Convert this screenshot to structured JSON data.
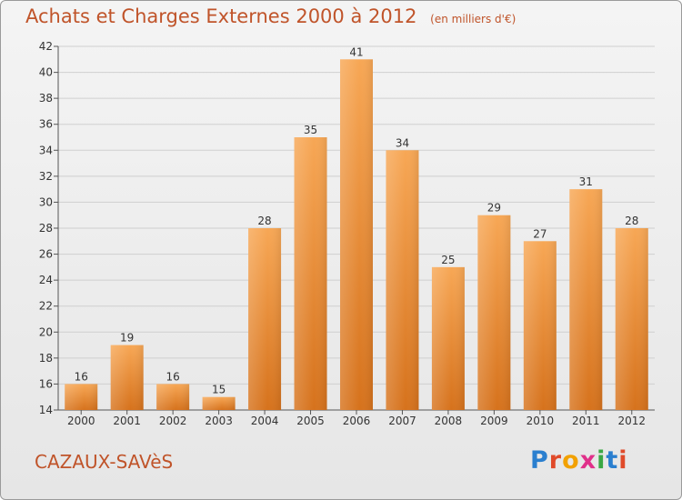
{
  "title": "Achats et Charges Externes 2000 à 2012",
  "subtitle": "(en milliers d'€)",
  "commune": "CAZAUX-SAVèS",
  "logo": [
    "P",
    "r",
    "o",
    "x",
    "i",
    "t",
    "i"
  ],
  "colors": {
    "title": "#c0542a",
    "bar_top": "#f7a755",
    "bar_bottom": "#d6721c",
    "logo": [
      "#2a7fcf",
      "#e04a2a",
      "#f2a100",
      "#e0308a",
      "#3aa844",
      "#2a7fcf",
      "#e04a2a"
    ]
  },
  "chart_data": {
    "type": "bar",
    "categories": [
      "2000",
      "2001",
      "2002",
      "2003",
      "2004",
      "2005",
      "2006",
      "2007",
      "2008",
      "2009",
      "2010",
      "2011",
      "2012"
    ],
    "values": [
      16,
      19,
      16,
      15,
      28,
      35,
      41,
      34,
      25,
      29,
      27,
      31,
      28
    ],
    "ylim": [
      14,
      42
    ],
    "yticks": [
      14,
      16,
      18,
      20,
      22,
      24,
      26,
      28,
      30,
      32,
      34,
      36,
      38,
      40,
      42
    ],
    "grid": true
  }
}
